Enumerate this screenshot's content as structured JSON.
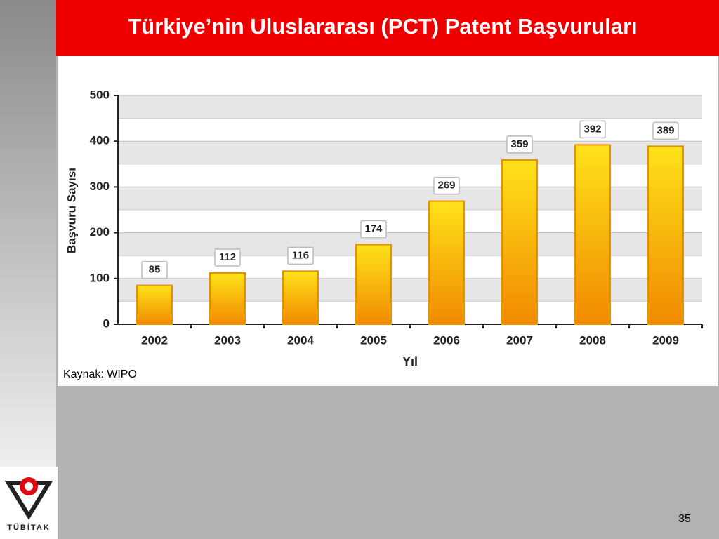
{
  "slide": {
    "title": "Türkiye’nin Uluslararası (PCT) Patent Başvuruları",
    "source": "Kaynak: WIPO",
    "page_number": "35",
    "logo_text": "TÜBİTAK"
  },
  "chart_data": {
    "type": "bar",
    "x_label": "Yıl",
    "y_label": "Başvuru Sayısı",
    "categories": [
      "2002",
      "2003",
      "2004",
      "2005",
      "2006",
      "2007",
      "2008",
      "2009"
    ],
    "values": [
      85,
      112,
      116,
      174,
      269,
      359,
      392,
      389
    ],
    "color": "#f5a800",
    "ylim": [
      0,
      500
    ],
    "yticks": [
      0,
      100,
      200,
      300,
      400,
      500
    ],
    "grid": true
  }
}
